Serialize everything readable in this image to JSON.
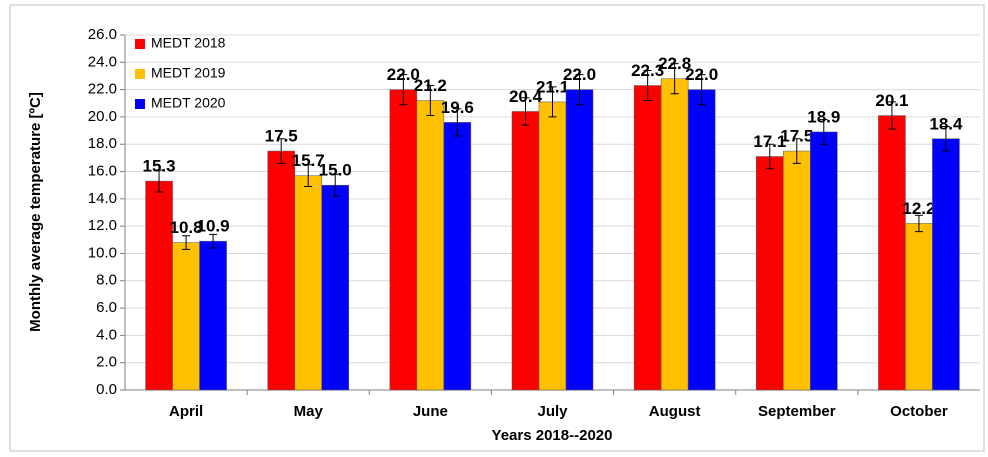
{
  "chart_data": {
    "type": "bar",
    "ylabel": "Monthly average temperature [ºC]",
    "xlabel": "Years 2018--2020",
    "categories": [
      "April",
      "May",
      "June",
      "July",
      "August",
      "September",
      "October"
    ],
    "series": [
      {
        "name": "MEDT 2018",
        "color": "#ff0000",
        "values": [
          15.3,
          17.5,
          22.0,
          20.4,
          22.3,
          17.1,
          20.1
        ],
        "value_labels": [
          "15.3",
          "17.5",
          "22.0",
          "20.4",
          "22.3",
          "17.1",
          "20.1"
        ],
        "errors": [
          0.8,
          0.9,
          1.1,
          1.0,
          1.1,
          0.9,
          1.0
        ]
      },
      {
        "name": "MEDT 2019",
        "color": "#ffc000",
        "values": [
          10.8,
          15.7,
          21.2,
          21.1,
          22.8,
          17.5,
          12.2
        ],
        "value_labels": [
          "10.8",
          "15.7",
          "21.2",
          "21.1",
          "22.8",
          "17.5",
          "12.2"
        ],
        "errors": [
          0.5,
          0.8,
          1.1,
          1.1,
          1.1,
          0.9,
          0.6
        ]
      },
      {
        "name": "MEDT 2020",
        "color": "#0000ff",
        "values": [
          10.9,
          15.0,
          19.6,
          22.0,
          22.0,
          18.9,
          18.4
        ],
        "value_labels": [
          "10.9",
          "15.0",
          "19.6",
          "22.0",
          "22.0",
          "18.9",
          "18.4"
        ],
        "errors": [
          0.5,
          0.8,
          1.0,
          1.1,
          1.1,
          0.9,
          0.9
        ]
      }
    ],
    "ylim": [
      0,
      26
    ],
    "yticks": [
      {
        "value": 0,
        "label": "0.0"
      },
      {
        "value": 2,
        "label": "2.0"
      },
      {
        "value": 4,
        "label": "4.0"
      },
      {
        "value": 6,
        "label": "6.0"
      },
      {
        "value": 8,
        "label": "8.0"
      },
      {
        "value": 10,
        "label": "10.0"
      },
      {
        "value": 12,
        "label": "12.0"
      },
      {
        "value": 14,
        "label": "14.0"
      },
      {
        "value": 16,
        "label": "16.0"
      },
      {
        "value": 18,
        "label": "18.0"
      },
      {
        "value": 20,
        "label": "20.0"
      },
      {
        "value": 22,
        "label": "22.0"
      },
      {
        "value": 24,
        "label": "24.0"
      },
      {
        "value": 26,
        "label": "26.0"
      }
    ],
    "grid": true,
    "legend": "top-left"
  }
}
